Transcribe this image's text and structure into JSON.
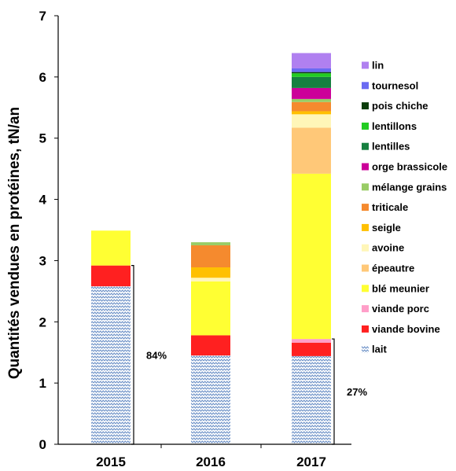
{
  "chart_data": {
    "type": "bar",
    "stacked": true,
    "categories": [
      "2015",
      "2016",
      "2017"
    ],
    "ylabel": "Quantités vendues  en protéines, tN/an",
    "ylim": [
      0,
      7
    ],
    "yticks": [
      "0",
      "1",
      "2",
      "3",
      "4",
      "5",
      "6",
      "7"
    ],
    "legend_position": "right",
    "series": [
      {
        "name": "lait",
        "color": "#A9C4E4",
        "pattern": "zigzag",
        "values": [
          2.58,
          1.45,
          1.44
        ]
      },
      {
        "name": "viande bovine",
        "color": "#FF2020",
        "values": [
          0.34,
          0.33,
          0.22
        ]
      },
      {
        "name": "viande porc",
        "color": "#FF9EC8",
        "values": [
          0,
          0,
          0.06
        ]
      },
      {
        "name": "blé meunier",
        "color": "#FFFF33",
        "values": [
          0.57,
          0.88,
          2.7
        ]
      },
      {
        "name": "épeautre",
        "color": "#FFC878",
        "values": [
          0,
          0,
          0.75
        ]
      },
      {
        "name": "avoine",
        "color": "#FFF6B8",
        "values": [
          0,
          0.06,
          0.22
        ]
      },
      {
        "name": "seigle",
        "color": "#FFC000",
        "values": [
          0,
          0.17,
          0.05
        ]
      },
      {
        "name": "triticale",
        "color": "#F58A2E",
        "values": [
          0,
          0.36,
          0.15
        ]
      },
      {
        "name": "mélange grains",
        "color": "#99CC66",
        "values": [
          0,
          0.05,
          0.05
        ]
      },
      {
        "name": "orge brassicole",
        "color": "#CC0099",
        "values": [
          0,
          0,
          0.18
        ]
      },
      {
        "name": "lentilles",
        "color": "#168040",
        "values": [
          0,
          0,
          0.18
        ]
      },
      {
        "name": "lentillons",
        "color": "#22CC22",
        "values": [
          0,
          0,
          0.06
        ]
      },
      {
        "name": "pois chiche",
        "color": "#0B3D0B",
        "values": [
          0,
          0,
          0.02
        ]
      },
      {
        "name": "tournesol",
        "color": "#6A6AF2",
        "values": [
          0,
          0,
          0.06
        ]
      },
      {
        "name": "lin",
        "color": "#B080F0",
        "values": [
          0,
          0,
          0.25
        ]
      }
    ],
    "annotations": [
      {
        "text": "84%",
        "category": "2015",
        "y_from": 0,
        "y_to": 2.92
      },
      {
        "text": "27%",
        "category": "2017",
        "y_from": 0,
        "y_to": 1.72
      }
    ]
  }
}
